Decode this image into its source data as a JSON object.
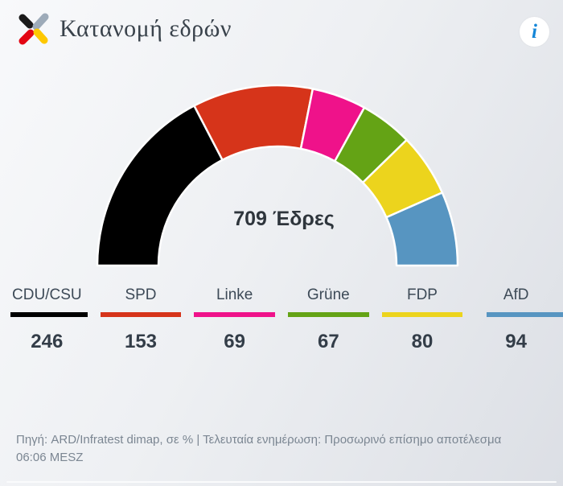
{
  "header": {
    "title": "Κατανομή εδρών",
    "info_label": "i"
  },
  "chart_data": {
    "type": "pie",
    "subtype": "half-donut-gauge",
    "title": "Κατανομή εδρών",
    "center_label": "709 Έδρες",
    "total_seats": 709,
    "angle_span_deg": 180,
    "legend_position": "bottom",
    "series": [
      {
        "name": "CDU/CSU",
        "value": 246,
        "color": "#000000"
      },
      {
        "name": "SPD",
        "value": 153,
        "color": "#d6341a"
      },
      {
        "name": "Linke",
        "value": 69,
        "color": "#ef128a"
      },
      {
        "name": "Grüne",
        "value": 67,
        "color": "#64a315"
      },
      {
        "name": "FDP",
        "value": 80,
        "color": "#ecd41d"
      },
      {
        "name": "AfD",
        "value": 94,
        "color": "#5795c1"
      }
    ]
  },
  "logo": {
    "name": "x-cross-logo",
    "arm_colors": {
      "top_left": "#1a1a1a",
      "top_right": "#9dabb9",
      "bottom_left": "#e30613",
      "bottom_right": "#fec800"
    }
  },
  "footer": {
    "source_text": "Πηγή: ARD/Infratest dimap, σε % | Τελευταία ενημέρωση: Προσωρινό επίσημο αποτέλεσμα 06:06 MESZ"
  }
}
